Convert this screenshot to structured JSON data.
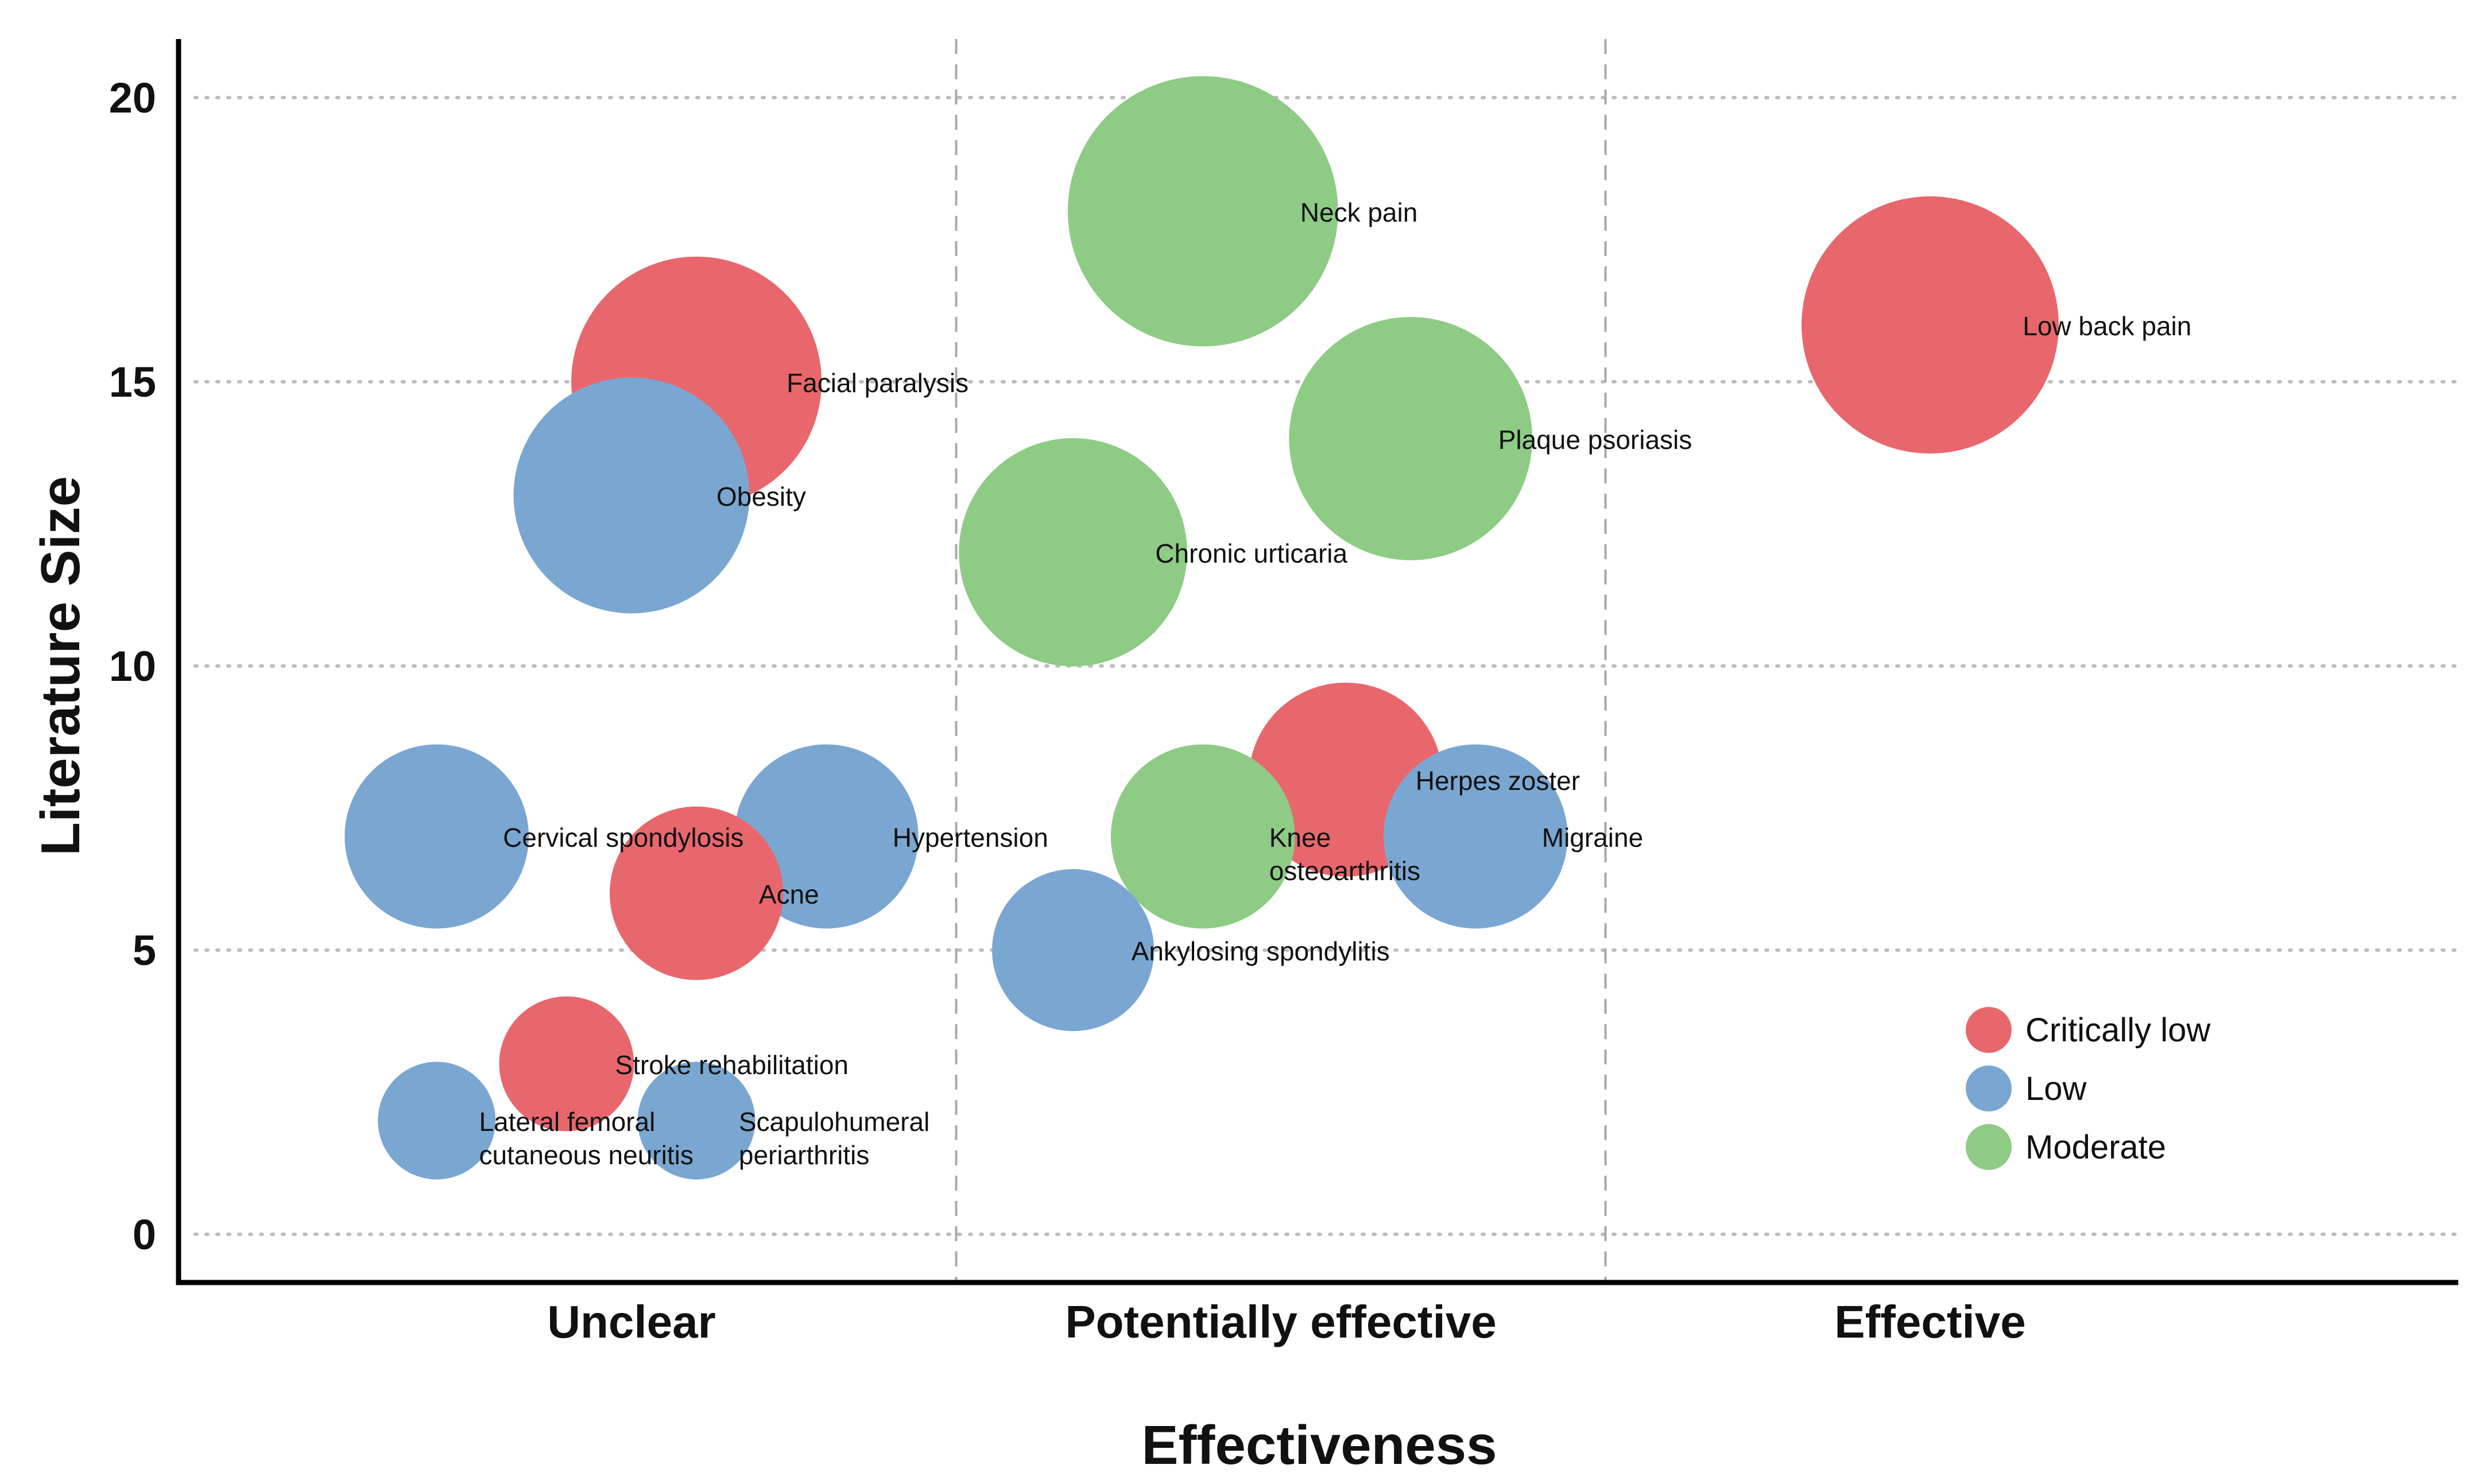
{
  "chart_data": {
    "type": "scatter",
    "subtype": "bubble",
    "title": "",
    "xlabel": "Effectiveness",
    "ylabel": "Literature Size",
    "x_categories": [
      "Unclear",
      "Potentially effective",
      "Effective"
    ],
    "ylim": [
      0,
      20
    ],
    "yticks": [
      "0",
      "5",
      "10",
      "15",
      "20"
    ],
    "grid": "horizontal dotted",
    "legend_position": "bottom-right",
    "quality_levels": [
      {
        "name": "Critically low",
        "color": "#e8676c"
      },
      {
        "name": "Low",
        "color": "#7aa7d1"
      },
      {
        "name": "Moderate",
        "color": "#8ecb85"
      }
    ],
    "points": [
      {
        "label": "Neck pain",
        "label_lines": [
          "Neck pain"
        ],
        "category": "Potentially effective",
        "x": 1.88,
        "y": 18,
        "quality": "Moderate"
      },
      {
        "label": "Low back pain",
        "label_lines": [
          "Low back pain"
        ],
        "category": "Effective",
        "x": 3.0,
        "y": 16,
        "quality": "Critically low"
      },
      {
        "label": "Facial paralysis",
        "label_lines": [
          "Facial paralysis"
        ],
        "category": "Unclear",
        "x": 1.1,
        "y": 15,
        "quality": "Critically low"
      },
      {
        "label": "Plaque psoriasis",
        "label_lines": [
          "Plaque psoriasis"
        ],
        "category": "Potentially effective",
        "x": 2.2,
        "y": 14,
        "quality": "Moderate"
      },
      {
        "label": "Obesity",
        "label_lines": [
          "Obesity"
        ],
        "category": "Unclear",
        "x": 1.0,
        "y": 13,
        "quality": "Low"
      },
      {
        "label": "Chronic urticaria",
        "label_lines": [
          "Chronic urticaria"
        ],
        "category": "Potentially effective",
        "x": 1.68,
        "y": 12,
        "quality": "Moderate"
      },
      {
        "label": "Herpes zoster",
        "label_lines": [
          "Herpes zoster"
        ],
        "category": "Potentially effective",
        "x": 2.1,
        "y": 8,
        "quality": "Critically low"
      },
      {
        "label": "Cervical spondylosis",
        "label_lines": [
          "Cervical spondylosis"
        ],
        "category": "Unclear",
        "x": 0.7,
        "y": 7,
        "quality": "Low"
      },
      {
        "label": "Hypertension",
        "label_lines": [
          "Hypertension"
        ],
        "category": "Unclear",
        "x": 1.3,
        "y": 7,
        "quality": "Low"
      },
      {
        "label": "Knee osteoarthritis",
        "label_lines": [
          "Knee",
          "osteoarthritis"
        ],
        "category": "Potentially effective",
        "x": 1.88,
        "y": 7,
        "quality": "Moderate"
      },
      {
        "label": "Migraine",
        "label_lines": [
          "Migraine"
        ],
        "category": "Potentially effective",
        "x": 2.3,
        "y": 7,
        "quality": "Low"
      },
      {
        "label": "Acne",
        "label_lines": [
          "Acne"
        ],
        "category": "Unclear",
        "x": 1.1,
        "y": 6,
        "quality": "Critically low"
      },
      {
        "label": "Ankylosing spondylitis",
        "label_lines": [
          "Ankylosing spondylitis"
        ],
        "category": "Potentially effective",
        "x": 1.68,
        "y": 5,
        "quality": "Low"
      },
      {
        "label": "Stroke rehabilitation",
        "label_lines": [
          "Stroke rehabilitation"
        ],
        "category": "Unclear",
        "x": 0.9,
        "y": 3,
        "quality": "Critically low"
      },
      {
        "label": "Lateral femoral cutaneous neuritis",
        "label_lines": [
          "Lateral femoral",
          "cutaneous neuritis"
        ],
        "category": "Unclear",
        "x": 0.7,
        "y": 2,
        "quality": "Low"
      },
      {
        "label": "Scapulohumeral periarthritis",
        "label_lines": [
          "Scapulohumeral",
          "periarthritis"
        ],
        "category": "Unclear",
        "x": 1.1,
        "y": 2,
        "quality": "Low"
      }
    ]
  }
}
